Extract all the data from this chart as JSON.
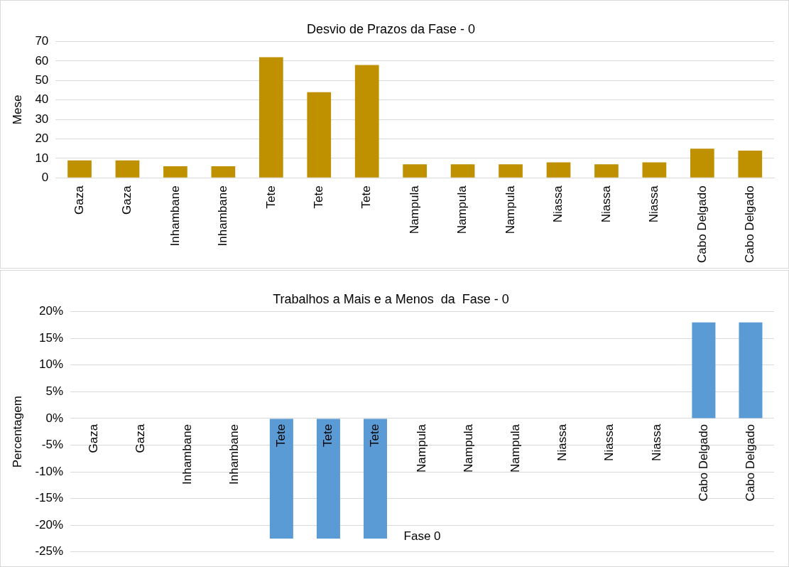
{
  "chart_data": [
    {
      "type": "bar",
      "title": "Desvio de Prazos da Fase - 0",
      "ylabel": "Mese",
      "categories": [
        "Gaza",
        "Gaza",
        "Inhambane",
        "Inhambane",
        "Tete",
        "Tete",
        "Tete",
        "Nampula",
        "Nampula",
        "Nampula",
        "Niassa",
        "Niassa",
        "Niassa",
        "Cabo Delgado",
        "Cabo Delgado"
      ],
      "values": [
        9,
        9,
        6,
        6,
        62,
        44,
        58,
        7,
        7,
        7,
        8,
        7,
        8,
        15,
        14
      ],
      "color": "#bf9000",
      "ylim": [
        0,
        70
      ],
      "yticks": [
        0,
        10,
        20,
        30,
        40,
        50,
        60,
        70
      ],
      "grid": "y"
    },
    {
      "type": "bar",
      "title": "Trabalhos a Mais e a Menos  da  Fase - 0",
      "ylabel": "Percentagem",
      "xlabel": "Fase 0",
      "categories": [
        "Gaza",
        "Gaza",
        "Inhambane",
        "Inhambane",
        "Tete",
        "Tete",
        "Tete",
        "Nampula",
        "Nampula",
        "Nampula",
        "Niassa",
        "Niassa",
        "Niassa",
        "Cabo Delgado",
        "Cabo Delgado"
      ],
      "values": [
        0,
        0,
        0,
        0,
        -22.5,
        -22.5,
        -22.5,
        0,
        0,
        0,
        0,
        0,
        0,
        18,
        18
      ],
      "color": "#5b9bd5",
      "ylim": [
        -25,
        20
      ],
      "yticks": [
        {
          "value": -25,
          "label": "-25%"
        },
        {
          "value": -20,
          "label": "-20%"
        },
        {
          "value": -15,
          "label": "-15%"
        },
        {
          "value": -10,
          "label": "-10%"
        },
        {
          "value": -5,
          "label": "-5%"
        },
        {
          "value": 0,
          "label": "0%"
        },
        {
          "value": 5,
          "label": "5%"
        },
        {
          "value": 10,
          "label": "10%"
        },
        {
          "value": 15,
          "label": "15%"
        },
        {
          "value": 20,
          "label": "20%"
        }
      ],
      "grid": "y"
    }
  ]
}
